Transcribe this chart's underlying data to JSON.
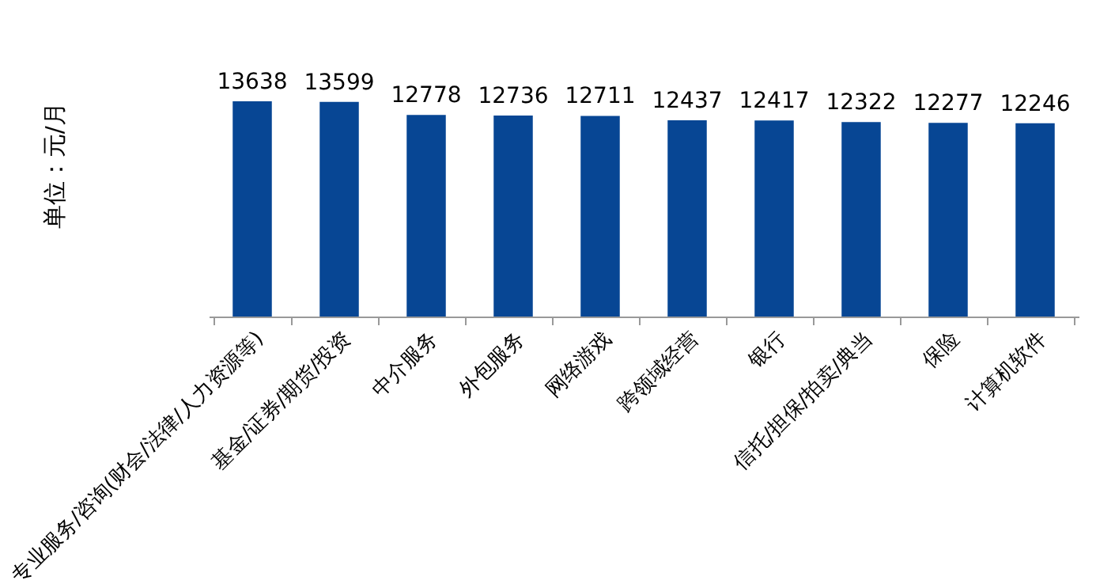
{
  "chart_data": {
    "type": "bar",
    "ylabel": "单位：元/月",
    "categories": [
      "专业服务/咨询(财会/法律/人力资源等)",
      "基金/证券/期货/投资",
      "中介服务",
      "外包服务",
      "网络游戏",
      "跨领域经营",
      "银行",
      "信托/担保/拍卖/典当",
      "保险",
      "计算机软件"
    ],
    "values": [
      13638,
      13599,
      12778,
      12736,
      12711,
      12437,
      12417,
      12322,
      12277,
      12246
    ],
    "color": "#074694",
    "data_labels": true,
    "tick_labels": "x",
    "grid": false
  }
}
